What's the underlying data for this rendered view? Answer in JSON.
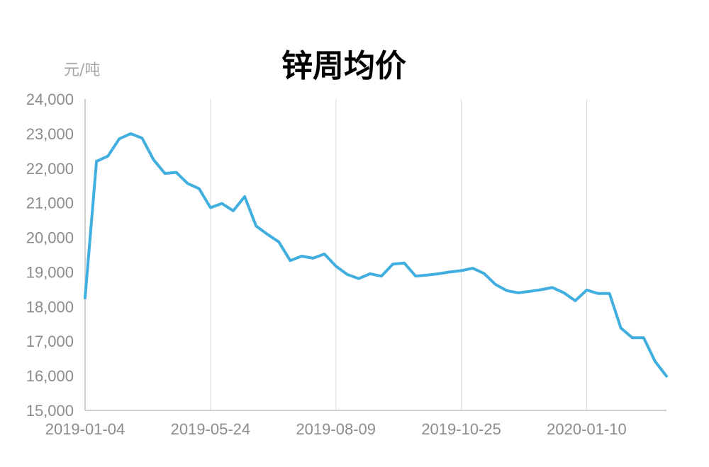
{
  "chart_data": {
    "type": "line",
    "title": "锌周均价",
    "ylabel": "元/吨",
    "xlabel": "",
    "ylim": [
      15000,
      24000
    ],
    "ytick_step": 1000,
    "yticks": [
      "15,000",
      "16,000",
      "17,000",
      "18,000",
      "19,000",
      "20,000",
      "21,000",
      "22,000",
      "23,000",
      "24,000"
    ],
    "xtick_labels": [
      "2019-01-04",
      "2019-05-24",
      "2019-08-09",
      "2019-10-25",
      "2020-01-10"
    ],
    "xtick_index": [
      0,
      11,
      22,
      33,
      44
    ],
    "grid": "vertical",
    "line_color": "#41aee0",
    "values": [
      18250,
      22200,
      22350,
      22850,
      23000,
      22870,
      22250,
      21850,
      21880,
      21560,
      21410,
      20860,
      20980,
      20770,
      21180,
      20330,
      20090,
      19870,
      19330,
      19460,
      19400,
      19520,
      19170,
      18930,
      18810,
      18950,
      18880,
      19230,
      19260,
      18880,
      18910,
      18950,
      19000,
      19040,
      19110,
      18960,
      18640,
      18460,
      18400,
      18440,
      18490,
      18550,
      18400,
      18170,
      18480,
      18380,
      18380,
      17380,
      17100,
      17100,
      16420,
      15990
    ]
  }
}
